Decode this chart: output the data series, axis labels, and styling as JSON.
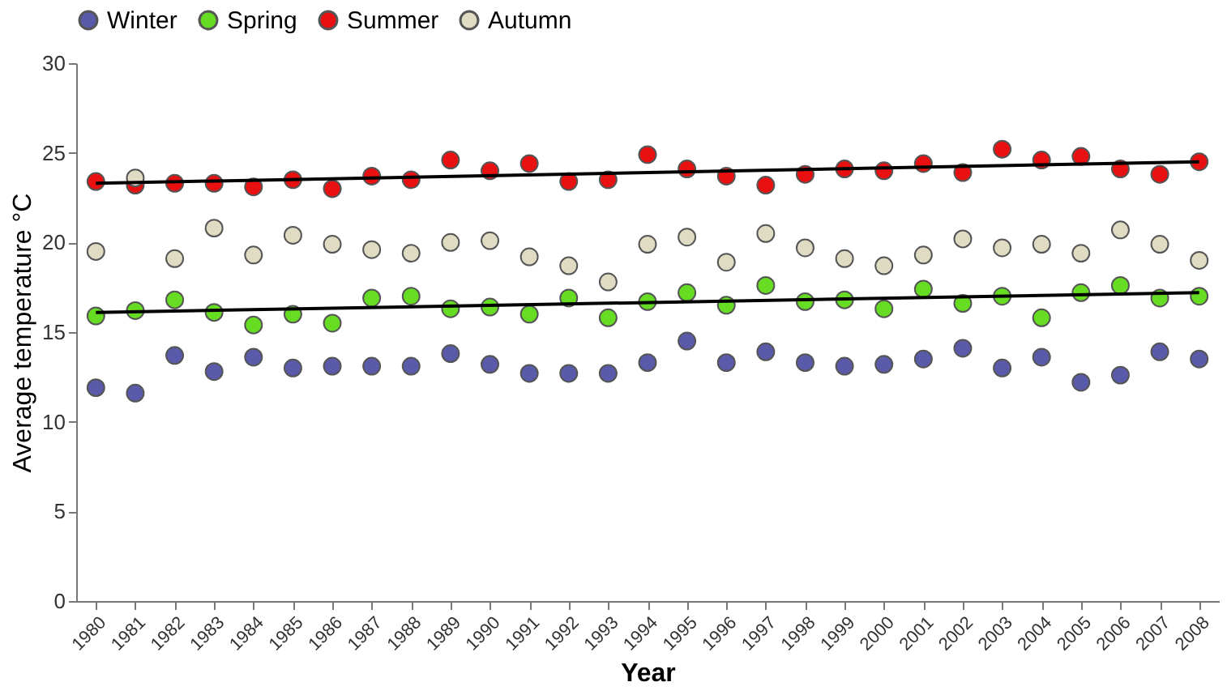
{
  "chart_data": {
    "type": "scatter",
    "xlabel": "Year",
    "ylabel": "Average temperature °C",
    "categories": [
      "1980",
      "1981",
      "1982",
      "1983",
      "1984",
      "1985",
      "1986",
      "1987",
      "1988",
      "1989",
      "1990",
      "1991",
      "1992",
      "1993",
      "1994",
      "1995",
      "1996",
      "1997",
      "1998",
      "1999",
      "2000",
      "2001",
      "2002",
      "2003",
      "2004",
      "2005",
      "2006",
      "2007",
      "2008"
    ],
    "ylim": [
      0,
      30
    ],
    "yticks": [
      0,
      5,
      10,
      15,
      20,
      25,
      30
    ],
    "grid": false,
    "legend": "top",
    "marker": "circle",
    "series": [
      {
        "name": "Winter",
        "color": "#5a5aaa",
        "values": [
          11.9,
          11.6,
          13.7,
          12.8,
          13.6,
          13.0,
          13.1,
          13.1,
          13.1,
          13.8,
          13.2,
          12.7,
          12.7,
          12.7,
          13.3,
          14.5,
          13.3,
          13.9,
          13.3,
          13.1,
          13.2,
          13.5,
          14.1,
          13.0,
          13.6,
          12.2,
          12.6,
          13.9,
          13.5
        ]
      },
      {
        "name": "Spring",
        "color": "#66dd22",
        "values": [
          15.9,
          16.2,
          16.8,
          16.1,
          15.4,
          16.0,
          15.5,
          16.9,
          17.0,
          16.3,
          16.4,
          16.0,
          16.9,
          15.8,
          16.7,
          17.2,
          16.5,
          17.6,
          16.7,
          16.8,
          16.3,
          17.4,
          16.6,
          17.0,
          15.8,
          17.2,
          17.6,
          16.9,
          17.0
        ]
      },
      {
        "name": "Summer",
        "color": "#e81010",
        "values": [
          23.4,
          23.2,
          23.3,
          23.3,
          23.1,
          23.5,
          23.0,
          23.7,
          23.5,
          24.6,
          24.0,
          24.4,
          23.4,
          23.5,
          24.9,
          24.1,
          23.7,
          23.2,
          23.8,
          24.1,
          24.0,
          24.4,
          23.9,
          25.2,
          24.6,
          24.8,
          24.1,
          23.8,
          24.5
        ]
      },
      {
        "name": "Autumn",
        "color": "#e0dcc4",
        "values": [
          19.5,
          23.6,
          19.1,
          20.8,
          19.3,
          20.4,
          19.9,
          19.6,
          19.4,
          20.0,
          20.1,
          19.2,
          18.7,
          17.8,
          19.9,
          20.3,
          18.9,
          20.5,
          19.7,
          19.1,
          18.7,
          19.3,
          20.2,
          19.7,
          19.9,
          19.4,
          20.7,
          19.9,
          19.0
        ]
      },
      {
        "type": "line",
        "color": "#000000",
        "marker": "none",
        "values": [
          23.3,
          null,
          null,
          null,
          null,
          null,
          null,
          null,
          null,
          null,
          null,
          null,
          null,
          null,
          null,
          null,
          null,
          null,
          null,
          null,
          null,
          null,
          null,
          null,
          null,
          null,
          null,
          null,
          24.5
        ]
      },
      {
        "type": "line",
        "color": "#000000",
        "marker": "none",
        "values": [
          16.1,
          null,
          null,
          null,
          null,
          null,
          null,
          null,
          null,
          null,
          null,
          null,
          null,
          null,
          null,
          null,
          null,
          null,
          null,
          null,
          null,
          null,
          null,
          null,
          null,
          null,
          null,
          null,
          17.2
        ]
      }
    ]
  }
}
